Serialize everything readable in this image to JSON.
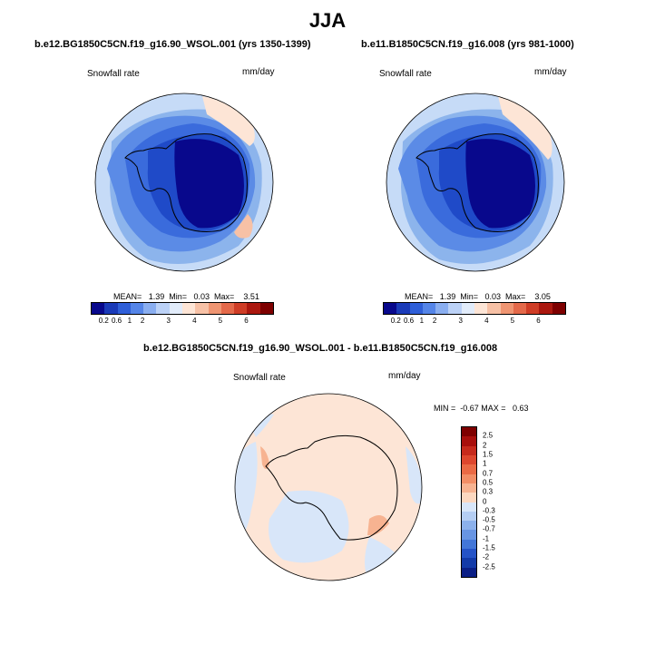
{
  "main_title": "JJA",
  "panels": [
    {
      "title": "b.e12.BG1850C5CN.f19_g16.90_WSOL.001 (yrs 1350-1399)",
      "variable": "Snowfall rate",
      "units": "mm/day",
      "stats": "MEAN=   1.39  Min=   0.03  Max=    3.51"
    },
    {
      "title": "b.e11.B1850C5CN.f19_g16.008 (yrs 981-1000)",
      "variable": "Snowfall rate",
      "units": "mm/day",
      "stats": "MEAN=   1.39  Min=   0.03  Max=    3.05"
    },
    {
      "title": "b.e12.BG1850C5CN.f19_g16.90_WSOL.001 - b.e11.B1850C5CN.f19_g16.008",
      "variable": "Snowfall rate",
      "units": "mm/day",
      "stats": "MIN =  -0.67 MAX =   0.63"
    }
  ],
  "colorbar_abs": {
    "labels": [
      "0.2",
      "0.6",
      "1",
      "2",
      "3",
      "4",
      "5",
      "6"
    ],
    "colors": [
      "#08088c",
      "#1a3ab8",
      "#2f5fd8",
      "#5585e8",
      "#8aaef0",
      "#bcd2f7",
      "#e2ecfa",
      "#fde5d6",
      "#f7c1a6",
      "#ef9572",
      "#e4694a",
      "#cf3d26",
      "#ab180f",
      "#7e0000"
    ]
  },
  "colorbar_diff": {
    "labels": [
      "2.5",
      "2",
      "1.5",
      "1",
      "0.7",
      "0.5",
      "0.3",
      "0",
      "-0.3",
      "-0.5",
      "-0.7",
      "-1",
      "-1.5",
      "-2",
      "-2.5"
    ],
    "colors": [
      "#7e0000",
      "#a80f0c",
      "#c62a1c",
      "#dd472e",
      "#ea6a45",
      "#f28e66",
      "#f7b391",
      "#fcd8c0",
      "#d8e6f9",
      "#b5cef3",
      "#8cb1ec",
      "#6895e3",
      "#4276d8",
      "#2553c7",
      "#133aa8",
      "#0a1e85"
    ]
  }
}
